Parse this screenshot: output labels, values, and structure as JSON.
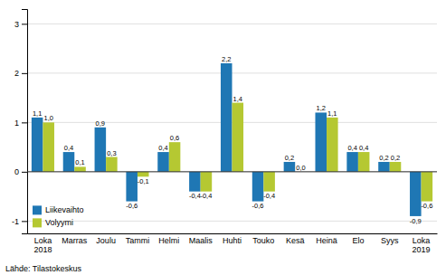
{
  "chart_data": {
    "type": "bar",
    "categories": [
      "Loka\n2018",
      "Marras",
      "Joulu",
      "Tammi",
      "Helmi",
      "Maalis",
      "Huhti",
      "Touko",
      "Kesä",
      "Heinä",
      "Elo",
      "Syys",
      "Loka\n2019"
    ],
    "series": [
      {
        "name": "Liikevaihto",
        "color": "#1f77b4",
        "values": [
          1.1,
          0.4,
          0.9,
          -0.6,
          0.4,
          -0.4,
          2.2,
          -0.6,
          0.2,
          1.2,
          0.4,
          0.2,
          -0.9
        ],
        "value_labels": [
          "1,1",
          "0,4",
          "0,9",
          "-0,6",
          "0,4",
          "-0,4",
          "2,2",
          "-0,6",
          "0,2",
          "1,2",
          "0,4",
          "0,2",
          "-0,9"
        ]
      },
      {
        "name": "Volyymi",
        "color": "#b5c832",
        "values": [
          1.0,
          0.1,
          0.3,
          -0.1,
          0.6,
          -0.4,
          1.4,
          -0.4,
          0.0,
          1.1,
          0.4,
          0.2,
          -0.6
        ],
        "value_labels": [
          "1,0",
          "0,1",
          "0,3",
          "-0,1",
          "0,6",
          "-0,4",
          "1,4",
          "-0,4",
          "0,0",
          "1,1",
          "0,4",
          "0,2",
          "-0,6"
        ]
      }
    ],
    "ylim": [
      -1.25,
      3.3
    ],
    "yticks": [
      -1,
      0,
      1,
      2,
      3
    ],
    "grid": true,
    "legend": "lower left",
    "data_labels": true,
    "annotations": [
      "Lähde: Tilastokeskus"
    ]
  }
}
